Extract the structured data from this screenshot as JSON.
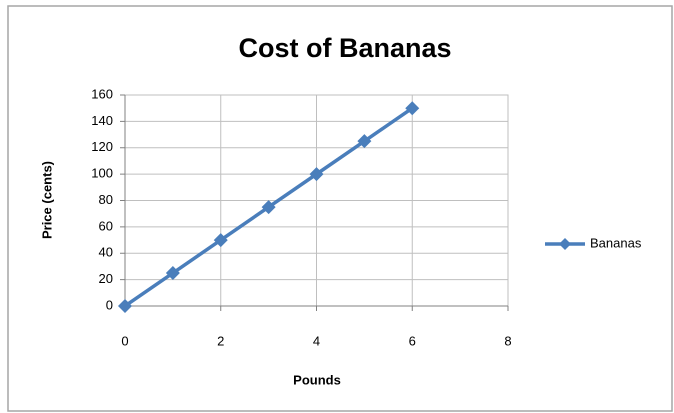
{
  "chart_data": {
    "type": "line",
    "title": "Cost of Bananas",
    "x_label": "Pounds",
    "y_label": "Price (cents)",
    "x": [
      0,
      1,
      2,
      3,
      4,
      5,
      6
    ],
    "series": [
      {
        "name": "Bananas",
        "color": "#4a7ebb",
        "values": [
          0,
          25,
          50,
          75,
          100,
          125,
          150
        ]
      }
    ],
    "xlim": [
      0,
      8
    ],
    "xticks": [
      0,
      2,
      4,
      6,
      8
    ],
    "ylim": [
      0,
      160
    ],
    "yticks": [
      0,
      20,
      40,
      60,
      80,
      100,
      120,
      140,
      160
    ],
    "grid": true,
    "legend": "right"
  }
}
